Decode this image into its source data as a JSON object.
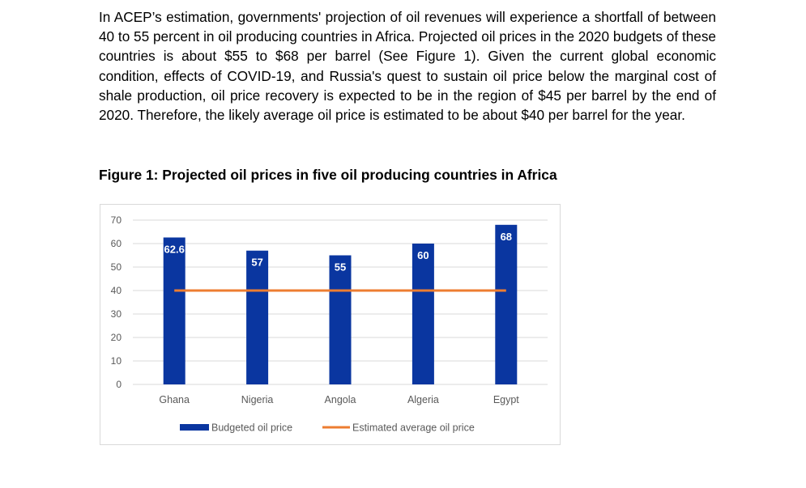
{
  "paragraph": "In ACEP’s estimation, governments' projection of oil revenues will experience a shortfall of between 40 to 55 percent in oil producing countries in Africa. Projected oil prices in the 2020 budgets of these countries is about $55 to $68 per barrel (See Figure 1). Given the current global economic condition, effects of COVID-19, and Russia's quest to sustain oil price below the marginal cost of shale production, oil price recovery is expected to be in the region of $45 per barrel by the end of 2020. Therefore, the likely average oil price is estimated to be about $40 per barrel for the year.",
  "figure_title": "Figure 1: Projected oil prices in five oil producing countries in Africa",
  "colors": {
    "bar": "#0a36a0",
    "line": "#ed7d31",
    "grid": "#d9d9d9",
    "tick_text": "#595959",
    "data_label": "#ffffff"
  },
  "chart_data": {
    "type": "bar",
    "categories": [
      "Ghana",
      "Nigeria",
      "Angola",
      "Algeria",
      "Egypt"
    ],
    "series": [
      {
        "name": "Budgeted oil price",
        "kind": "bar",
        "values": [
          62.6,
          57,
          55,
          60,
          68
        ],
        "labels": [
          "62.6",
          "57",
          "55",
          "60",
          "68"
        ]
      },
      {
        "name": "Estimated average oil price",
        "kind": "line",
        "values": [
          40,
          40,
          40,
          40,
          40
        ]
      }
    ],
    "y_ticks": [
      "0",
      "10",
      "20",
      "30",
      "40",
      "50",
      "60",
      "70"
    ],
    "ylim": [
      0,
      70
    ],
    "grid": true,
    "legend": "bottom"
  }
}
